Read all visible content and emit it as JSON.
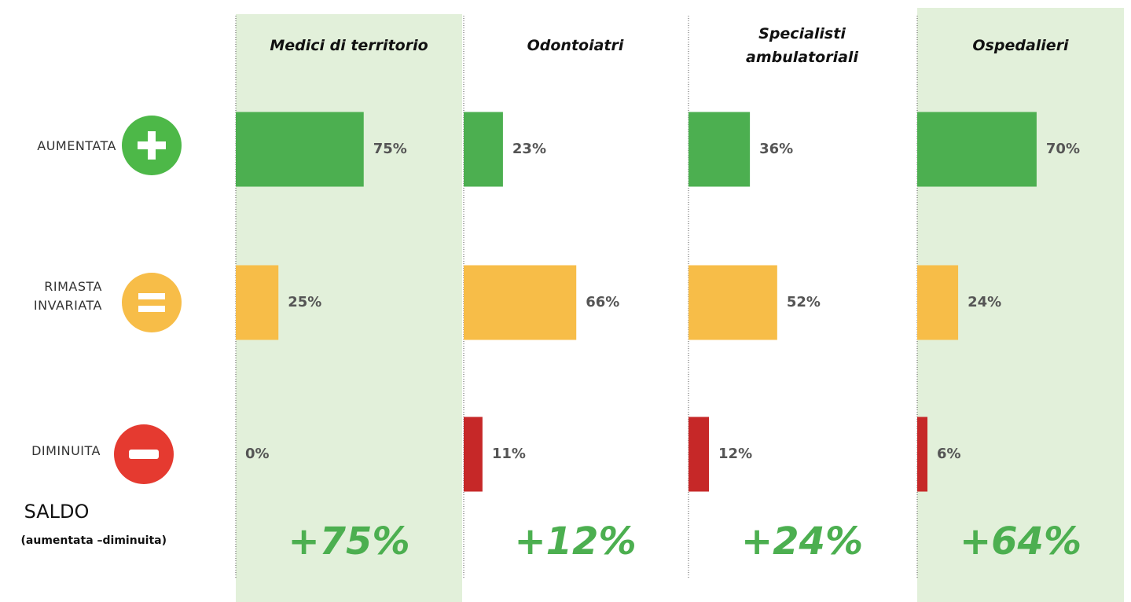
{
  "chart_data": {
    "type": "bar",
    "orientation": "horizontal",
    "categories": [
      "AUMENTATA",
      "RIMASTA INVARIATA",
      "DIMINUITA"
    ],
    "category_colors": [
      "#4caf50",
      "#f7bd48",
      "#c62828"
    ],
    "series": [
      {
        "name": "Medici di territorio",
        "values": [
          75,
          25,
          0
        ],
        "value_labels": [
          "75%",
          "25%",
          "0%"
        ],
        "saldo": 75,
        "saldo_label": "+75%",
        "highlight": true
      },
      {
        "name": "Odontoiatri",
        "values": [
          23,
          66,
          11
        ],
        "value_labels": [
          "23%",
          "66%",
          "11%"
        ],
        "saldo": 12,
        "saldo_label": "+12%",
        "highlight": false
      },
      {
        "name": "Specialisti ambulatoriali",
        "values": [
          36,
          52,
          12
        ],
        "value_labels": [
          "36%",
          "52%",
          "12%"
        ],
        "saldo": 24,
        "saldo_label": "+24%",
        "highlight": false
      },
      {
        "name": "Ospedalieri",
        "values": [
          70,
          24,
          6
        ],
        "value_labels": [
          "70%",
          "24%",
          "6%"
        ],
        "saldo": 64,
        "saldo_label": "+64%",
        "highlight": true
      }
    ],
    "saldo_title": "SALDO",
    "saldo_note": "(aumentata –diminuita)",
    "highlight_color": "#e2f0da",
    "saldo_color": "#4caf50"
  }
}
